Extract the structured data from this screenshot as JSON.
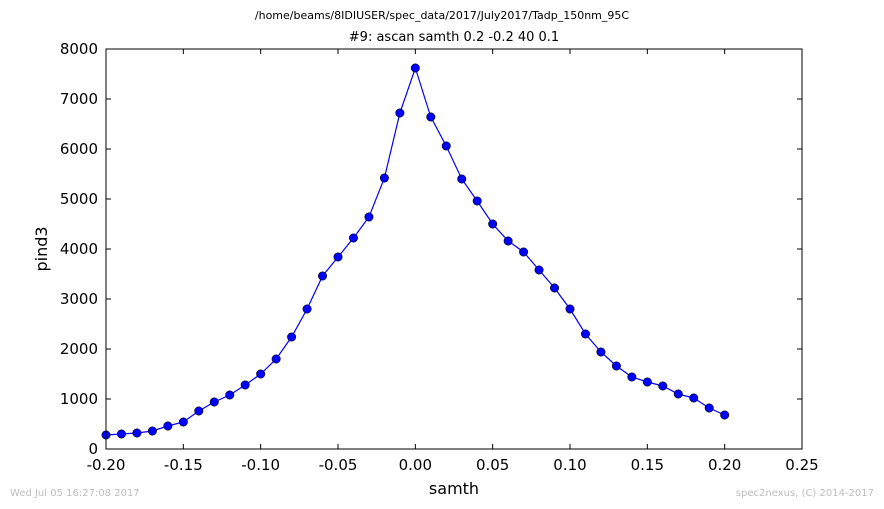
{
  "suptitle": "/home/beams/8IDIUSER/spec_data/2017/July2017/Tadp_150nm_95C",
  "footer": {
    "timestamp": "Wed Jul 05 16:27:08 2017",
    "credit": "spec2nexus, (C) 2014-2017"
  },
  "colors": {
    "series": "#0000ff",
    "marker": "#0000ff",
    "footer_text": "#bdbdbd"
  },
  "chart_data": {
    "type": "line",
    "title": "#9: ascan  samth 0.2 -0.2  40 0.1",
    "xlabel": "samth",
    "ylabel": "pind3",
    "xlim": [
      -0.2,
      0.25
    ],
    "ylim": [
      0,
      8000
    ],
    "xticks": [
      "-0.20",
      "-0.15",
      "-0.10",
      "-0.05",
      "0.00",
      "0.05",
      "0.10",
      "0.15",
      "0.20",
      "0.25"
    ],
    "xtick_values": [
      -0.2,
      -0.15,
      -0.1,
      -0.05,
      0.0,
      0.05,
      0.1,
      0.15,
      0.2,
      0.25
    ],
    "yticks": [
      "0",
      "1000",
      "2000",
      "3000",
      "4000",
      "5000",
      "6000",
      "7000",
      "8000"
    ],
    "ytick_values": [
      0,
      1000,
      2000,
      3000,
      4000,
      5000,
      6000,
      7000,
      8000
    ],
    "grid": false,
    "legend": "none",
    "marker": "circle",
    "series": [
      {
        "x": [
          -0.2,
          -0.19,
          -0.18,
          -0.17,
          -0.16,
          -0.15,
          -0.14,
          -0.13,
          -0.12,
          -0.11,
          -0.1,
          -0.09,
          -0.08,
          -0.07,
          -0.06,
          -0.05,
          -0.04,
          -0.03,
          -0.02,
          -0.01,
          0.0,
          0.01,
          0.02,
          0.03,
          0.04,
          0.05,
          0.06,
          0.07,
          0.08,
          0.09,
          0.1,
          0.11,
          0.12,
          0.13,
          0.14,
          0.15,
          0.16,
          0.17,
          0.18,
          0.19,
          0.2
        ],
        "y": [
          280,
          300,
          320,
          360,
          460,
          540,
          760,
          940,
          1080,
          1280,
          1500,
          1800,
          2240,
          2800,
          3460,
          3840,
          4220,
          4640,
          5420,
          6720,
          7620,
          6640,
          6060,
          5400,
          4960,
          4500,
          4160,
          3940,
          3580,
          3220,
          2800,
          2300,
          1940,
          1660,
          1440,
          1340,
          1260,
          1100,
          1020,
          820,
          680
        ]
      }
    ]
  }
}
